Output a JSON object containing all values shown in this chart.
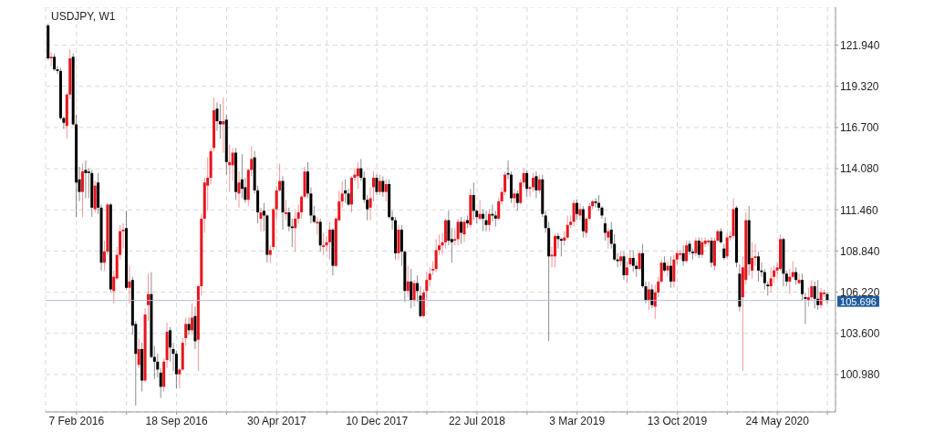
{
  "chart_data": {
    "type": "candlestick",
    "title": "USDJPY, W1",
    "x": [
      "2015-12-06",
      "2015-12-13",
      "2015-12-20",
      "2015-12-27",
      "2016-01-03",
      "2016-01-10",
      "2016-01-17",
      "2016-01-24",
      "2016-01-31",
      "2016-02-07",
      "2016-02-14",
      "2016-02-21",
      "2016-02-28",
      "2016-03-06",
      "2016-03-13",
      "2016-03-20",
      "2016-03-27",
      "2016-04-03",
      "2016-04-10",
      "2016-04-17",
      "2016-04-24",
      "2016-05-01",
      "2016-05-08",
      "2016-05-15",
      "2016-05-22",
      "2016-05-29",
      "2016-06-05",
      "2016-06-12",
      "2016-06-19",
      "2016-06-26",
      "2016-07-03",
      "2016-07-10",
      "2016-07-17",
      "2016-07-24",
      "2016-07-31",
      "2016-08-07",
      "2016-08-14",
      "2016-08-21",
      "2016-08-28",
      "2016-09-04",
      "2016-09-11",
      "2016-09-18",
      "2016-09-25",
      "2016-10-02",
      "2016-10-09",
      "2016-10-16",
      "2016-10-23",
      "2016-10-30",
      "2016-11-06",
      "2016-11-13",
      "2016-11-20",
      "2016-11-27",
      "2016-12-04",
      "2016-12-11",
      "2016-12-18",
      "2016-12-25",
      "2017-01-01",
      "2017-01-08",
      "2017-01-15",
      "2017-01-22",
      "2017-01-29",
      "2017-02-05",
      "2017-02-12",
      "2017-02-19",
      "2017-02-26",
      "2017-03-05",
      "2017-03-12",
      "2017-03-19",
      "2017-03-26",
      "2017-04-02",
      "2017-04-09",
      "2017-04-16",
      "2017-04-23",
      "2017-04-30",
      "2017-05-07",
      "2017-05-14",
      "2017-05-21",
      "2017-05-28",
      "2017-06-04",
      "2017-06-11",
      "2017-06-18",
      "2017-06-25",
      "2017-07-02",
      "2017-07-09",
      "2017-07-16",
      "2017-07-23",
      "2017-07-30",
      "2017-08-06",
      "2017-08-13",
      "2017-08-20",
      "2017-08-27",
      "2017-09-03",
      "2017-09-10",
      "2017-09-17",
      "2017-09-24",
      "2017-10-01",
      "2017-10-08",
      "2017-10-15",
      "2017-10-22",
      "2017-10-29",
      "2017-11-05",
      "2017-11-12",
      "2017-11-19",
      "2017-11-26",
      "2017-12-03",
      "2017-12-10",
      "2017-12-17",
      "2017-12-24",
      "2017-12-31",
      "2018-01-07",
      "2018-01-14",
      "2018-01-21",
      "2018-01-28",
      "2018-02-04",
      "2018-02-11",
      "2018-02-18",
      "2018-02-25",
      "2018-03-04",
      "2018-03-11",
      "2018-03-18",
      "2018-03-25",
      "2018-04-01",
      "2018-04-08",
      "2018-04-15",
      "2018-04-22",
      "2018-04-29",
      "2018-05-06",
      "2018-05-13",
      "2018-05-20",
      "2018-05-27",
      "2018-06-03",
      "2018-06-10",
      "2018-06-17",
      "2018-06-24",
      "2018-07-01",
      "2018-07-08",
      "2018-07-15",
      "2018-07-22",
      "2018-07-29",
      "2018-08-05",
      "2018-08-12",
      "2018-08-19",
      "2018-08-26",
      "2018-09-02",
      "2018-09-09",
      "2018-09-16",
      "2018-09-23",
      "2018-09-30",
      "2018-10-07",
      "2018-10-14",
      "2018-10-21",
      "2018-10-28",
      "2018-11-04",
      "2018-11-11",
      "2018-11-18",
      "2018-11-25",
      "2018-12-02",
      "2018-12-09",
      "2018-12-16",
      "2018-12-23",
      "2018-12-30",
      "2019-01-06",
      "2019-01-13",
      "2019-01-20",
      "2019-01-27",
      "2019-02-03",
      "2019-02-10",
      "2019-02-17",
      "2019-02-24",
      "2019-03-03",
      "2019-03-10",
      "2019-03-17",
      "2019-03-24",
      "2019-03-31",
      "2019-04-07",
      "2019-04-14",
      "2019-04-21",
      "2019-04-28",
      "2019-05-05",
      "2019-05-12",
      "2019-05-19",
      "2019-05-26",
      "2019-06-02",
      "2019-06-09",
      "2019-06-16",
      "2019-06-23",
      "2019-06-30",
      "2019-07-07",
      "2019-07-14",
      "2019-07-21",
      "2019-07-28",
      "2019-08-04",
      "2019-08-11",
      "2019-08-18",
      "2019-08-25",
      "2019-09-01",
      "2019-09-08",
      "2019-09-15",
      "2019-09-22",
      "2019-09-29",
      "2019-10-06",
      "2019-10-13",
      "2019-10-20",
      "2019-10-27",
      "2019-11-03",
      "2019-11-10",
      "2019-11-17",
      "2019-11-24",
      "2019-12-01",
      "2019-12-08",
      "2019-12-15",
      "2019-12-22",
      "2019-12-29",
      "2020-01-05",
      "2020-01-12",
      "2020-01-19",
      "2020-01-26",
      "2020-02-02",
      "2020-02-09",
      "2020-02-16",
      "2020-02-23",
      "2020-03-01",
      "2020-03-08",
      "2020-03-15",
      "2020-03-22",
      "2020-03-29",
      "2020-04-05",
      "2020-04-12",
      "2020-04-19",
      "2020-04-26",
      "2020-05-03",
      "2020-05-10",
      "2020-05-17",
      "2020-05-24",
      "2020-05-31",
      "2020-06-07",
      "2020-06-14",
      "2020-06-21",
      "2020-06-28",
      "2020-07-05",
      "2020-07-12",
      "2020-07-19",
      "2020-07-26",
      "2020-08-02",
      "2020-08-09",
      "2020-08-16",
      "2020-08-23",
      "2020-08-30",
      "2020-09-06",
      "2020-09-13"
    ],
    "ohlc": [
      [
        123.2,
        123.3,
        121.0,
        121.1
      ],
      [
        121.1,
        121.5,
        120.6,
        121.2
      ],
      [
        121.2,
        121.4,
        120.3,
        120.4
      ],
      [
        120.4,
        120.6,
        120.1,
        120.3
      ],
      [
        120.3,
        120.5,
        117.2,
        117.3
      ],
      [
        117.3,
        117.4,
        116.6,
        117.0
      ],
      [
        116.8,
        118.9,
        116.0,
        118.8
      ],
      [
        118.8,
        121.7,
        118.5,
        121.1
      ],
      [
        121.2,
        121.4,
        116.8,
        116.9
      ],
      [
        116.9,
        117.5,
        111.0,
        113.2
      ],
      [
        113.4,
        114.2,
        112.0,
        112.6
      ],
      [
        112.6,
        114.4,
        111.0,
        113.9
      ],
      [
        114.0,
        114.6,
        112.2,
        113.8
      ],
      [
        113.9,
        114.1,
        112.2,
        113.8
      ],
      [
        113.8,
        114.0,
        111.0,
        111.6
      ],
      [
        111.5,
        113.3,
        111.3,
        113.0
      ],
      [
        113.2,
        113.8,
        111.2,
        111.6
      ],
      [
        111.6,
        111.8,
        107.6,
        108.1
      ],
      [
        108.1,
        109.5,
        107.6,
        108.8
      ],
      [
        108.8,
        111.9,
        108.6,
        111.8
      ],
      [
        111.8,
        111.9,
        106.2,
        106.4
      ],
      [
        106.3,
        107.6,
        105.5,
        107.2
      ],
      [
        107.1,
        109.1,
        107.0,
        108.6
      ],
      [
        108.6,
        110.5,
        108.3,
        110.1
      ],
      [
        110.1,
        110.6,
        109.0,
        110.2
      ],
      [
        110.3,
        111.4,
        106.4,
        106.5
      ],
      [
        106.5,
        107.9,
        105.5,
        106.9
      ],
      [
        107.0,
        107.2,
        103.5,
        104.1
      ],
      [
        104.2,
        104.4,
        99.0,
        102.3
      ],
      [
        101.6,
        103.3,
        101.4,
        102.6
      ],
      [
        102.6,
        103.0,
        99.9,
        100.6
      ],
      [
        100.6,
        105.2,
        100.5,
        104.8
      ],
      [
        105.4,
        107.4,
        104.4,
        106.1
      ],
      [
        106.1,
        107.5,
        102.0,
        102.1
      ],
      [
        102.1,
        102.8,
        100.7,
        101.8
      ],
      [
        101.8,
        102.3,
        100.8,
        101.3
      ],
      [
        101.1,
        101.4,
        99.5,
        100.2
      ],
      [
        100.2,
        102.0,
        99.9,
        101.8
      ],
      [
        101.9,
        104.3,
        101.4,
        103.7
      ],
      [
        103.8,
        104.0,
        101.8,
        102.7
      ],
      [
        102.6,
        103.0,
        101.2,
        102.3
      ],
      [
        102.3,
        102.5,
        100.1,
        101.0
      ],
      [
        101.0,
        101.4,
        100.1,
        101.3
      ],
      [
        101.3,
        103.3,
        101.2,
        103.0
      ],
      [
        103.3,
        104.6,
        102.8,
        104.2
      ],
      [
        104.2,
        104.6,
        103.5,
        103.8
      ],
      [
        103.8,
        105.5,
        103.5,
        104.6
      ],
      [
        104.7,
        105.3,
        102.6,
        103.1
      ],
      [
        103.2,
        106.7,
        101.2,
        106.6
      ],
      [
        106.6,
        111.2,
        106.0,
        110.9
      ],
      [
        110.9,
        113.5,
        110.0,
        113.2
      ],
      [
        113.0,
        114.8,
        111.4,
        113.5
      ],
      [
        113.5,
        115.4,
        113.1,
        115.2
      ],
      [
        115.4,
        118.6,
        115.2,
        117.8
      ],
      [
        117.9,
        118.3,
        116.5,
        117.1
      ],
      [
        117.1,
        118.2,
        116.0,
        116.9
      ],
      [
        116.9,
        118.6,
        115.1,
        117.1
      ],
      [
        117.2,
        117.5,
        113.7,
        114.5
      ],
      [
        114.3,
        115.6,
        112.6,
        114.5
      ],
      [
        114.3,
        115.4,
        113.3,
        115.1
      ],
      [
        115.1,
        115.4,
        112.1,
        112.6
      ],
      [
        112.5,
        113.9,
        111.6,
        113.2
      ],
      [
        113.4,
        115.0,
        112.2,
        112.8
      ],
      [
        112.9,
        113.5,
        111.9,
        112.1
      ],
      [
        112.1,
        114.1,
        111.7,
        114.0
      ],
      [
        114.0,
        115.5,
        113.6,
        114.7
      ],
      [
        114.8,
        115.2,
        112.5,
        112.7
      ],
      [
        112.7,
        113.0,
        110.6,
        111.3
      ],
      [
        110.9,
        111.6,
        110.1,
        111.3
      ],
      [
        111.4,
        111.9,
        110.1,
        111.1
      ],
      [
        111.1,
        111.2,
        108.1,
        108.6
      ],
      [
        108.6,
        109.2,
        108.1,
        108.9
      ],
      [
        109.1,
        111.6,
        108.9,
        111.5
      ],
      [
        111.5,
        113.0,
        110.8,
        112.7
      ],
      [
        112.7,
        114.4,
        112.6,
        113.3
      ],
      [
        113.3,
        113.6,
        110.2,
        111.3
      ],
      [
        111.2,
        112.1,
        110.8,
        111.3
      ],
      [
        111.3,
        111.6,
        110.1,
        110.4
      ],
      [
        110.4,
        110.9,
        109.1,
        110.3
      ],
      [
        110.3,
        111.4,
        108.8,
        110.9
      ],
      [
        110.9,
        111.8,
        110.6,
        111.3
      ],
      [
        111.3,
        112.4,
        110.9,
        112.3
      ],
      [
        112.3,
        114.2,
        112.2,
        113.9
      ],
      [
        113.9,
        114.5,
        112.2,
        112.5
      ],
      [
        112.5,
        112.9,
        110.6,
        111.1
      ],
      [
        111.1,
        111.7,
        110.6,
        110.7
      ],
      [
        110.6,
        111.0,
        109.9,
        110.7
      ],
      [
        110.7,
        110.9,
        108.8,
        109.2
      ],
      [
        109.1,
        110.0,
        108.6,
        109.2
      ],
      [
        109.2,
        109.8,
        108.8,
        109.4
      ],
      [
        109.4,
        110.7,
        108.3,
        110.2
      ],
      [
        110.2,
        110.3,
        107.3,
        107.9
      ],
      [
        107.9,
        111.0,
        107.8,
        110.9
      ],
      [
        110.8,
        112.7,
        110.7,
        112.0
      ],
      [
        112.0,
        113.3,
        111.6,
        112.5
      ],
      [
        112.7,
        113.4,
        111.9,
        112.5
      ],
      [
        112.5,
        112.8,
        111.7,
        111.8
      ],
      [
        111.8,
        113.6,
        111.3,
        113.5
      ],
      [
        113.5,
        114.1,
        113.3,
        113.7
      ],
      [
        113.6,
        114.5,
        112.8,
        114.1
      ],
      [
        114.1,
        114.7,
        113.3,
        113.5
      ],
      [
        113.5,
        113.9,
        111.9,
        112.1
      ],
      [
        112.1,
        112.4,
        110.8,
        111.5
      ],
      [
        111.6,
        112.9,
        110.8,
        112.2
      ],
      [
        112.9,
        113.9,
        112.0,
        113.5
      ],
      [
        113.5,
        113.7,
        112.4,
        112.6
      ],
      [
        112.6,
        113.7,
        112.4,
        113.3
      ],
      [
        113.3,
        113.6,
        112.3,
        112.6
      ],
      [
        112.6,
        113.4,
        112.0,
        113.1
      ],
      [
        113.1,
        113.4,
        110.9,
        111.0
      ],
      [
        111.0,
        111.4,
        110.2,
        110.8
      ],
      [
        110.8,
        111.0,
        108.3,
        108.7
      ],
      [
        108.7,
        110.5,
        108.3,
        110.2
      ],
      [
        110.2,
        110.5,
        107.9,
        108.8
      ],
      [
        108.8,
        108.9,
        105.6,
        106.3
      ],
      [
        106.3,
        107.9,
        105.9,
        106.9
      ],
      [
        106.9,
        107.7,
        105.2,
        105.7
      ],
      [
        105.7,
        107.0,
        105.3,
        106.8
      ],
      [
        106.8,
        107.3,
        105.6,
        106.3
      ],
      [
        106.0,
        106.6,
        104.6,
        104.7
      ],
      [
        104.7,
        106.4,
        104.6,
        106.2
      ],
      [
        106.3,
        107.5,
        105.7,
        107.0
      ],
      [
        107.0,
        107.8,
        106.6,
        107.4
      ],
      [
        107.6,
        108.2,
        107.3,
        107.7
      ],
      [
        107.7,
        109.6,
        107.5,
        108.9
      ],
      [
        108.9,
        109.9,
        108.6,
        109.2
      ],
      [
        109.2,
        110.0,
        108.6,
        109.4
      ],
      [
        109.4,
        110.9,
        109.0,
        110.8
      ],
      [
        110.8,
        111.4,
        109.2,
        109.5
      ],
      [
        109.6,
        110.3,
        108.1,
        109.4
      ],
      [
        109.5,
        110.3,
        109.2,
        109.6
      ],
      [
        109.6,
        110.9,
        109.2,
        110.7
      ],
      [
        110.7,
        111.0,
        109.3,
        110.0
      ],
      [
        109.9,
        110.9,
        109.4,
        110.7
      ],
      [
        110.8,
        111.1,
        110.3,
        110.6
      ],
      [
        110.5,
        112.8,
        110.3,
        112.4
      ],
      [
        112.4,
        113.2,
        110.8,
        111.4
      ],
      [
        111.4,
        111.5,
        110.6,
        111.0
      ],
      [
        110.9,
        112.1,
        110.8,
        111.2
      ],
      [
        111.2,
        111.5,
        110.1,
        110.9
      ],
      [
        110.8,
        111.4,
        110.1,
        110.5
      ],
      [
        110.5,
        111.5,
        110.1,
        111.2
      ],
      [
        111.2,
        111.8,
        110.7,
        111.1
      ],
      [
        111.1,
        111.4,
        110.4,
        110.9
      ],
      [
        110.9,
        112.2,
        110.8,
        112.0
      ],
      [
        112.0,
        112.9,
        111.8,
        112.6
      ],
      [
        112.6,
        113.9,
        112.4,
        113.7
      ],
      [
        113.8,
        114.6,
        113.4,
        113.7
      ],
      [
        113.7,
        113.9,
        111.9,
        112.2
      ],
      [
        112.2,
        112.8,
        111.6,
        112.5
      ],
      [
        112.5,
        112.7,
        111.4,
        111.9
      ],
      [
        111.9,
        113.4,
        111.8,
        113.2
      ],
      [
        113.2,
        114.1,
        112.9,
        113.8
      ],
      [
        113.8,
        114.0,
        112.3,
        112.8
      ],
      [
        112.8,
        113.0,
        112.3,
        112.9
      ],
      [
        112.9,
        113.8,
        112.6,
        113.5
      ],
      [
        113.6,
        113.9,
        112.2,
        112.7
      ],
      [
        112.7,
        113.7,
        112.5,
        113.4
      ],
      [
        113.4,
        113.7,
        111.0,
        111.2
      ],
      [
        111.1,
        111.4,
        110.0,
        110.3
      ],
      [
        110.3,
        110.7,
        103.1,
        108.5
      ],
      [
        108.5,
        109.1,
        107.8,
        108.6
      ],
      [
        108.5,
        109.9,
        107.8,
        109.8
      ],
      [
        109.8,
        110.0,
        109.0,
        109.6
      ],
      [
        109.6,
        109.7,
        108.5,
        109.5
      ],
      [
        109.5,
        110.1,
        109.2,
        109.7
      ],
      [
        109.7,
        111.1,
        109.6,
        110.5
      ],
      [
        110.5,
        111.1,
        110.3,
        110.7
      ],
      [
        110.7,
        112.1,
        110.4,
        111.9
      ],
      [
        111.9,
        112.1,
        110.8,
        111.2
      ],
      [
        111.1,
        111.9,
        110.8,
        111.5
      ],
      [
        111.5,
        111.7,
        109.7,
        110.1
      ],
      [
        110.0,
        111.0,
        109.7,
        110.9
      ],
      [
        110.9,
        111.9,
        110.8,
        111.7
      ],
      [
        111.7,
        112.1,
        111.5,
        112.0
      ],
      [
        112.0,
        112.2,
        111.6,
        111.9
      ],
      [
        111.9,
        112.4,
        111.4,
        111.6
      ],
      [
        111.6,
        111.7,
        110.9,
        111.1
      ],
      [
        110.6,
        111.0,
        109.5,
        110.0
      ],
      [
        109.7,
        110.3,
        109.0,
        110.1
      ],
      [
        110.2,
        110.7,
        109.0,
        109.3
      ],
      [
        109.3,
        109.9,
        108.2,
        108.3
      ],
      [
        108.3,
        108.7,
        107.8,
        108.2
      ],
      [
        108.2,
        108.8,
        107.9,
        108.5
      ],
      [
        108.5,
        108.8,
        107.0,
        107.3
      ],
      [
        107.3,
        108.2,
        106.8,
        107.8
      ],
      [
        108.0,
        108.9,
        107.8,
        108.4
      ],
      [
        108.4,
        108.9,
        107.5,
        107.9
      ],
      [
        107.9,
        108.2,
        107.2,
        107.7
      ],
      [
        107.7,
        108.8,
        107.6,
        108.7
      ],
      [
        108.7,
        109.3,
        106.5,
        106.6
      ],
      [
        106.6,
        106.9,
        105.5,
        105.7
      ],
      [
        105.7,
        106.9,
        105.1,
        106.4
      ],
      [
        106.4,
        106.7,
        105.2,
        105.4
      ],
      [
        105.3,
        106.7,
        104.5,
        106.2
      ],
      [
        106.2,
        107.2,
        105.9,
        106.9
      ],
      [
        106.9,
        108.3,
        106.8,
        108.1
      ],
      [
        108.1,
        108.5,
        107.5,
        107.6
      ],
      [
        107.6,
        108.2,
        107.2,
        107.9
      ],
      [
        107.9,
        108.5,
        106.5,
        106.9
      ],
      [
        106.9,
        108.6,
        106.5,
        108.3
      ],
      [
        108.3,
        108.9,
        108.0,
        108.7
      ],
      [
        108.6,
        108.9,
        108.3,
        108.7
      ],
      [
        108.7,
        109.2,
        107.9,
        108.2
      ],
      [
        108.2,
        109.5,
        108.1,
        109.2
      ],
      [
        109.3,
        109.5,
        108.6,
        108.8
      ],
      [
        108.8,
        109.0,
        108.3,
        108.7
      ],
      [
        108.7,
        109.7,
        108.5,
        109.5
      ],
      [
        109.5,
        109.7,
        108.4,
        108.6
      ],
      [
        108.6,
        109.7,
        108.4,
        109.4
      ],
      [
        109.3,
        109.7,
        109.1,
        109.5
      ],
      [
        109.4,
        109.6,
        109.2,
        109.5
      ],
      [
        109.5,
        109.7,
        107.8,
        108.1
      ],
      [
        107.9,
        109.7,
        107.6,
        109.5
      ],
      [
        109.5,
        110.2,
        109.4,
        110.1
      ],
      [
        110.1,
        110.3,
        109.3,
        109.4
      ],
      [
        109.0,
        109.3,
        108.3,
        108.4
      ],
      [
        108.5,
        110.0,
        108.3,
        109.7
      ],
      [
        109.7,
        110.1,
        109.5,
        109.8
      ],
      [
        109.8,
        112.2,
        109.6,
        111.5
      ],
      [
        111.6,
        111.7,
        107.8,
        108.1
      ],
      [
        107.4,
        108.0,
        105.0,
        105.3
      ],
      [
        105.9,
        108.5,
        101.2,
        107.8
      ],
      [
        107.0,
        111.3,
        106.7,
        110.8
      ],
      [
        110.8,
        111.7,
        107.3,
        108.0
      ],
      [
        107.6,
        109.4,
        107.1,
        108.4
      ],
      [
        108.4,
        109.3,
        107.9,
        108.5
      ],
      [
        108.5,
        108.8,
        106.9,
        107.6
      ],
      [
        107.6,
        108.1,
        107.2,
        107.5
      ],
      [
        107.5,
        107.7,
        106.4,
        106.8
      ],
      [
        106.7,
        106.9,
        106.0,
        106.6
      ],
      [
        106.6,
        107.8,
        106.2,
        107.1
      ],
      [
        107.2,
        107.9,
        106.8,
        107.6
      ],
      [
        107.6,
        108.1,
        107.1,
        107.8
      ],
      [
        107.7,
        109.9,
        107.6,
        109.6
      ],
      [
        109.6,
        109.7,
        106.6,
        107.4
      ],
      [
        107.4,
        107.6,
        106.6,
        106.9
      ],
      [
        106.9,
        107.7,
        106.1,
        107.2
      ],
      [
        107.2,
        108.2,
        107.1,
        107.5
      ],
      [
        107.5,
        107.8,
        106.7,
        107.0
      ],
      [
        106.8,
        107.4,
        106.7,
        107.0
      ],
      [
        107.0,
        107.4,
        105.7,
        106.1
      ],
      [
        105.9,
        106.2,
        104.2,
        105.8
      ],
      [
        105.7,
        106.5,
        105.3,
        105.9
      ],
      [
        105.9,
        107.0,
        105.7,
        106.6
      ],
      [
        106.6,
        106.9,
        105.2,
        105.8
      ],
      [
        105.8,
        107.0,
        105.1,
        105.4
      ],
      [
        105.4,
        106.5,
        105.2,
        106.2
      ],
      [
        106.1,
        106.4,
        105.9,
        106.2
      ],
      [
        106.1,
        106.2,
        105.5,
        105.7
      ]
    ],
    "colors": [
      "#000000",
      "#e8141c",
      "#000000",
      "#000000",
      "#000000",
      "#000000",
      "#e8141c",
      "#e8141c",
      "#000000",
      "#000000",
      "#000000",
      "#e8141c",
      "#000000",
      "#000000",
      "#000000",
      "#e8141c",
      "#000000",
      "#000000",
      "#e8141c",
      "#e8141c",
      "#000000",
      "#e8141c",
      "#e8141c",
      "#e8141c",
      "#e8141c",
      "#000000",
      "#e8141c",
      "#000000",
      "#000000",
      "#e8141c",
      "#000000",
      "#e8141c",
      "#e8141c",
      "#000000",
      "#000000",
      "#000000",
      "#000000",
      "#e8141c",
      "#e8141c",
      "#000000",
      "#000000",
      "#000000",
      "#e8141c",
      "#e8141c",
      "#e8141c",
      "#000000",
      "#e8141c",
      "#000000",
      "#e8141c",
      "#e8141c",
      "#e8141c",
      "#e8141c",
      "#e8141c",
      "#e8141c",
      "#000000",
      "#000000",
      "#e8141c",
      "#000000",
      "#e8141c",
      "#e8141c",
      "#000000",
      "#e8141c",
      "#000000",
      "#000000",
      "#e8141c",
      "#e8141c",
      "#000000",
      "#000000",
      "#e8141c",
      "#000000",
      "#000000",
      "#e8141c",
      "#e8141c",
      "#e8141c",
      "#e8141c",
      "#000000",
      "#e8141c",
      "#000000",
      "#000000",
      "#e8141c",
      "#e8141c",
      "#e8141c",
      "#e8141c",
      "#000000",
      "#000000",
      "#000000",
      "#e8141c",
      "#000000",
      "#e8141c",
      "#e8141c",
      "#e8141c",
      "#000000",
      "#e8141c",
      "#e8141c",
      "#e8141c",
      "#000000",
      "#000000",
      "#e8141c",
      "#e8141c",
      "#e8141c",
      "#000000",
      "#000000",
      "#000000",
      "#e8141c",
      "#e8141c",
      "#000000",
      "#e8141c",
      "#000000",
      "#e8141c",
      "#000000",
      "#000000",
      "#000000",
      "#e8141c",
      "#000000",
      "#000000",
      "#e8141c",
      "#000000",
      "#e8141c",
      "#000000",
      "#000000",
      "#e8141c",
      "#e8141c",
      "#e8141c",
      "#e8141c",
      "#e8141c",
      "#e8141c",
      "#e8141c",
      "#e8141c",
      "#000000",
      "#000000",
      "#e8141c",
      "#e8141c",
      "#000000",
      "#e8141c",
      "#000000",
      "#e8141c",
      "#000000",
      "#000000",
      "#e8141c",
      "#000000",
      "#000000",
      "#e8141c",
      "#000000",
      "#000000",
      "#e8141c",
      "#e8141c",
      "#e8141c",
      "#000000",
      "#000000",
      "#e8141c",
      "#000000",
      "#e8141c",
      "#e8141c",
      "#000000",
      "#e8141c",
      "#e8141c",
      "#000000",
      "#e8141c",
      "#000000",
      "#000000",
      "#000000",
      "#e8141c",
      "#e8141c",
      "#000000",
      "#000000",
      "#e8141c",
      "#e8141c",
      "#e8141c",
      "#e8141c",
      "#000000",
      "#e8141c",
      "#000000",
      "#e8141c",
      "#e8141c",
      "#e8141c",
      "#000000",
      "#000000",
      "#000000",
      "#000000",
      "#e8141c",
      "#000000",
      "#000000",
      "#000000",
      "#e8141c",
      "#000000",
      "#e8141c",
      "#e8141c",
      "#000000",
      "#000000",
      "#e8141c",
      "#000000",
      "#000000",
      "#e8141c",
      "#000000",
      "#e8141c",
      "#e8141c",
      "#e8141c",
      "#000000",
      "#e8141c",
      "#000000",
      "#e8141c",
      "#e8141c",
      "#e8141c",
      "#000000",
      "#e8141c",
      "#000000",
      "#000000",
      "#e8141c",
      "#000000",
      "#e8141c",
      "#e8141c",
      "#e8141c",
      "#000000",
      "#e8141c",
      "#e8141c",
      "#000000",
      "#000000",
      "#e8141c",
      "#e8141c",
      "#e8141c",
      "#000000",
      "#000000",
      "#e8141c",
      "#e8141c",
      "#000000",
      "#e8141c",
      "#e8141c",
      "#000000",
      "#000000",
      "#000000",
      "#000000",
      "#e8141c",
      "#e8141c",
      "#e8141c",
      "#e8141c",
      "#000000",
      "#000000",
      "#e8141c",
      "#e8141c",
      "#000000",
      "#e8141c",
      "#000000",
      "#000000",
      "#e8141c",
      "#e8141c",
      "#000000",
      "#000000",
      "#e8141c",
      "#e8141c",
      "#000000"
    ],
    "xlim": [
      "2015-11-30",
      "2020-10-01"
    ],
    "xticks": [
      {
        "value": "2016-02-07",
        "label": "7 Feb 2016"
      },
      {
        "value": "2016-05-29",
        "label": null
      },
      {
        "value": "2016-09-18",
        "label": "18 Sep 2016"
      },
      {
        "value": "2017-01-08",
        "label": null
      },
      {
        "value": "2017-04-30",
        "label": "30 Apr 2017"
      },
      {
        "value": "2017-08-20",
        "label": null
      },
      {
        "value": "2017-12-10",
        "label": "10 Dec 2017"
      },
      {
        "value": "2018-04-01",
        "label": null
      },
      {
        "value": "2018-07-22",
        "label": "22 Jul 2018"
      },
      {
        "value": "2018-11-11",
        "label": null
      },
      {
        "value": "2019-03-03",
        "label": "3 Mar 2019"
      },
      {
        "value": "2019-06-23",
        "label": null
      },
      {
        "value": "2019-10-13",
        "label": "13 Oct 2019"
      },
      {
        "value": "2020-02-02",
        "label": null
      },
      {
        "value": "2020-05-24",
        "label": "24 May 2020"
      },
      {
        "value": "2020-09-13",
        "label": null
      }
    ],
    "ylim": [
      98.6,
      124.35
    ],
    "yticks": [
      {
        "value": 100.98,
        "label": "100.980"
      },
      {
        "value": 103.6,
        "label": "103.600"
      },
      {
        "value": 106.22,
        "label": "106.220"
      },
      {
        "value": 108.84,
        "label": "108.840"
      },
      {
        "value": 111.46,
        "label": "111.460"
      },
      {
        "value": 114.08,
        "label": "114.080"
      },
      {
        "value": 116.7,
        "label": "116.700"
      },
      {
        "value": 119.32,
        "label": "119.320"
      },
      {
        "value": 121.94,
        "label": "121.940"
      }
    ],
    "grid": true,
    "ref_lines": [
      {
        "axis": "y",
        "value": 105.696,
        "label": "105.696",
        "color": "#b4b9dc"
      }
    ]
  }
}
